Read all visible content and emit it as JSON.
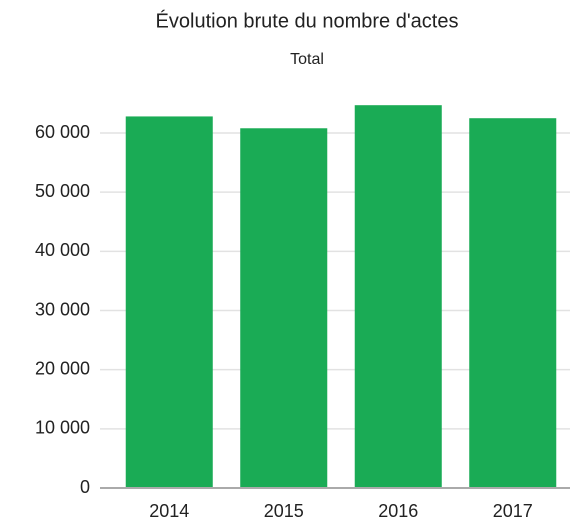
{
  "chart_data": {
    "type": "bar",
    "title": "Évolution brute du nombre d'actes",
    "subtitle": "Total",
    "categories": [
      "2014",
      "2015",
      "2016",
      "2017"
    ],
    "values": [
      62800,
      60800,
      64700,
      62500
    ],
    "color": "#1aab55",
    "ylim": [
      0,
      66000
    ],
    "yticks": [
      0,
      {
        "value": 10000,
        "label": "10 000"
      },
      {
        "value": 20000,
        "label": "20 000"
      },
      {
        "value": 30000,
        "label": "30 000"
      },
      {
        "value": 40000,
        "label": "40 000"
      },
      {
        "value": 50000,
        "label": "50 000"
      },
      {
        "value": 60000,
        "label": "60 000"
      }
    ],
    "grid": true
  }
}
